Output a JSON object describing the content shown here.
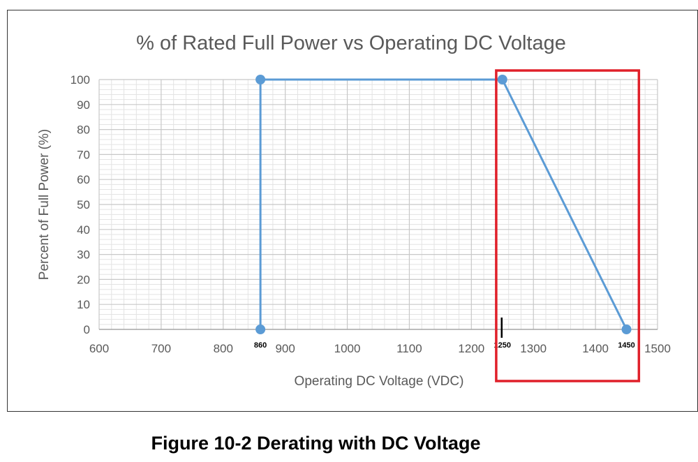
{
  "chart_data": {
    "type": "line",
    "title": "% of Rated Full Power vs Operating DC Voltage",
    "xlabel": "Operating DC Voltage (VDC)",
    "ylabel": "Percent of Full Power (%)",
    "xlim": [
      600,
      1500
    ],
    "ylim": [
      0,
      100
    ],
    "x_ticks": [
      600,
      700,
      800,
      900,
      1000,
      1100,
      1200,
      1300,
      1400,
      1500
    ],
    "y_ticks": [
      0,
      10,
      20,
      30,
      40,
      50,
      60,
      70,
      80,
      90,
      100
    ],
    "grid": true,
    "series": [
      {
        "name": "Full Power",
        "color": "#5b9bd5",
        "x": [
          860,
          860,
          1250,
          1450
        ],
        "y": [
          0,
          100,
          100,
          0
        ]
      }
    ],
    "annotations": [
      {
        "label": "860",
        "x": 860
      },
      {
        "label": "1250",
        "x": 1250
      },
      {
        "label": "1450",
        "x": 1450
      }
    ],
    "highlight": {
      "x_range": [
        1240,
        1470
      ],
      "color": "#e0202a"
    }
  },
  "caption": "Figure 10-2 Derating with DC Voltage"
}
